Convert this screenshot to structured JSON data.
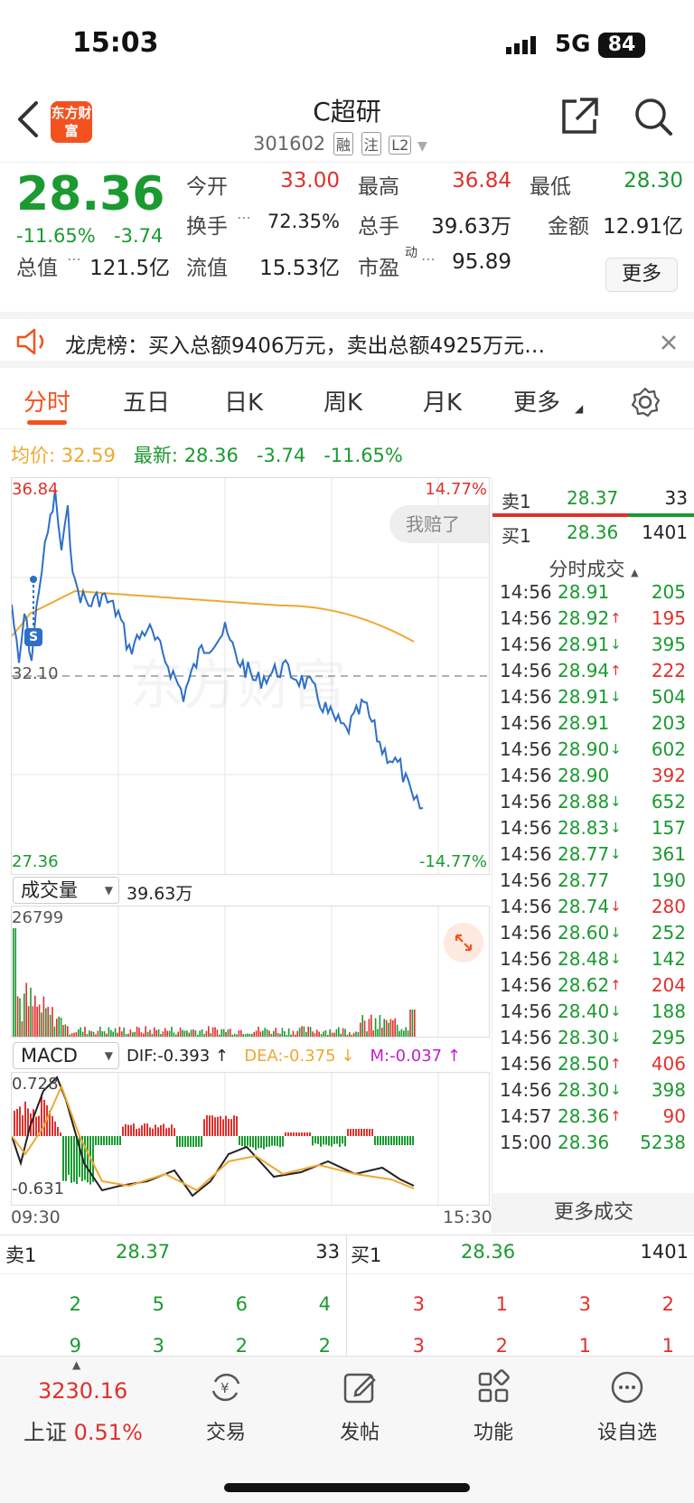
{
  "status_bar": {
    "time": "15:03",
    "network": "5G",
    "battery": "84"
  },
  "nav": {
    "logo_text": "东方财富",
    "stock_name": "C超研",
    "stock_code": "301602",
    "tags": [
      "融",
      "注",
      "L2"
    ]
  },
  "quote": {
    "price": "28.36",
    "change_pct": "-11.65%",
    "change": "-3.74",
    "open_label": "今开",
    "open": "33.00",
    "high_label": "最高",
    "high": "36.84",
    "low_label": "最低",
    "low": "28.30",
    "turnover_label": "换手",
    "turnover": "72.35%",
    "volume_label": "总手",
    "volume": "39.63万",
    "amount_label": "金额",
    "amount": "12.91亿",
    "mktcap_label": "总值",
    "mktcap": "121.5亿",
    "float_label": "流值",
    "float": "15.53亿",
    "pe_label": "市盈",
    "pe_sup": "动",
    "pe": "95.89",
    "more_button": "更多"
  },
  "banner": {
    "text": "龙虎榜：买入总额9406万元，卖出总额4925万元…"
  },
  "tabs": [
    "分时",
    "五日",
    "日K",
    "周K",
    "月K",
    "更多"
  ],
  "chart_header": {
    "avg_label": "均价:",
    "avg": "32.59",
    "last_label": "最新:",
    "last": "28.36",
    "chg": "-3.74",
    "pct": "-11.65%"
  },
  "chart": {
    "top_price": "36.84",
    "top_pct": "14.77%",
    "mid_price": "32.10",
    "bottom_price": "27.36",
    "bottom_pct": "-14.77%",
    "overlay_pill": "我赔了",
    "marker": "S",
    "watermark": "东方财富"
  },
  "volume_panel": {
    "selector": "成交量",
    "total": "39.63万",
    "max": "26799"
  },
  "macd_panel": {
    "selector": "MACD",
    "dif": "DIF:-0.393 ↑",
    "dea": "DEA:-0.375 ↓",
    "m": "M:-0.037 ↑",
    "top": "0.728",
    "bottom": "-0.631",
    "time_start": "09:30",
    "time_end": "15:30"
  },
  "order_book": {
    "sell1_label": "卖1",
    "sell1_price": "28.37",
    "sell1_vol": "33",
    "buy1_label": "买1",
    "buy1_price": "28.36",
    "buy1_vol": "1401",
    "ticks_title": "分时成交",
    "more_trades": "更多成交",
    "ticks": [
      {
        "time": "14:56",
        "price": "28.91",
        "arrow": "",
        "vol": "205",
        "color": "green"
      },
      {
        "time": "14:56",
        "price": "28.92",
        "arrow": "↑",
        "vol": "195",
        "color": "red"
      },
      {
        "time": "14:56",
        "price": "28.91",
        "arrow": "↓",
        "vol": "395",
        "color": "green"
      },
      {
        "time": "14:56",
        "price": "28.94",
        "arrow": "↑",
        "vol": "222",
        "color": "red"
      },
      {
        "time": "14:56",
        "price": "28.91",
        "arrow": "↓",
        "vol": "504",
        "color": "green"
      },
      {
        "time": "14:56",
        "price": "28.91",
        "arrow": "",
        "vol": "203",
        "color": "green"
      },
      {
        "time": "14:56",
        "price": "28.90",
        "arrow": "↓",
        "vol": "602",
        "color": "green"
      },
      {
        "time": "14:56",
        "price": "28.90",
        "arrow": "",
        "vol": "392",
        "color": "red"
      },
      {
        "time": "14:56",
        "price": "28.88",
        "arrow": "↓",
        "vol": "652",
        "color": "green"
      },
      {
        "time": "14:56",
        "price": "28.83",
        "arrow": "↓",
        "vol": "157",
        "color": "green"
      },
      {
        "time": "14:56",
        "price": "28.77",
        "arrow": "↓",
        "vol": "361",
        "color": "green"
      },
      {
        "time": "14:56",
        "price": "28.77",
        "arrow": "",
        "vol": "190",
        "color": "green"
      },
      {
        "time": "14:56",
        "price": "28.74",
        "arrow": "↓",
        "vol": "280",
        "color": "red"
      },
      {
        "time": "14:56",
        "price": "28.60",
        "arrow": "↓",
        "vol": "252",
        "color": "green"
      },
      {
        "time": "14:56",
        "price": "28.48",
        "arrow": "↓",
        "vol": "142",
        "color": "green"
      },
      {
        "time": "14:56",
        "price": "28.62",
        "arrow": "↑",
        "vol": "204",
        "color": "red"
      },
      {
        "time": "14:56",
        "price": "28.40",
        "arrow": "↓",
        "vol": "188",
        "color": "green"
      },
      {
        "time": "14:56",
        "price": "28.30",
        "arrow": "↓",
        "vol": "295",
        "color": "green"
      },
      {
        "time": "14:56",
        "price": "28.50",
        "arrow": "↑",
        "vol": "406",
        "color": "red"
      },
      {
        "time": "14:56",
        "price": "28.30",
        "arrow": "↓",
        "vol": "398",
        "color": "green"
      },
      {
        "time": "14:57",
        "price": "28.36",
        "arrow": "↑",
        "vol": "90",
        "color": "red"
      },
      {
        "time": "15:00",
        "price": "28.36",
        "arrow": "",
        "vol": "5238",
        "color": "green"
      }
    ]
  },
  "bottom_book": {
    "sell_label": "卖1",
    "sell_price": "28.37",
    "sell_vol": "33",
    "buy_label": "买1",
    "buy_price": "28.36",
    "buy_vol": "1401",
    "sell_rows": [
      [
        "2",
        "5",
        "6",
        "4"
      ],
      [
        "9",
        "3",
        "2",
        "2"
      ]
    ],
    "buy_rows": [
      [
        "3",
        "1",
        "3",
        "2"
      ],
      [
        "3",
        "2",
        "1",
        "1"
      ]
    ]
  },
  "bottom_nav": {
    "index_value": "3230.16",
    "index_name": "上证",
    "index_pct": "0.51%",
    "items": [
      "交易",
      "发帖",
      "功能",
      "设自选"
    ]
  },
  "colors": {
    "up": "#e0302c",
    "down": "#1a9a30",
    "accent": "#f3521f",
    "price_line": "#2e6fc7",
    "avg_line": "#f0a830"
  }
}
